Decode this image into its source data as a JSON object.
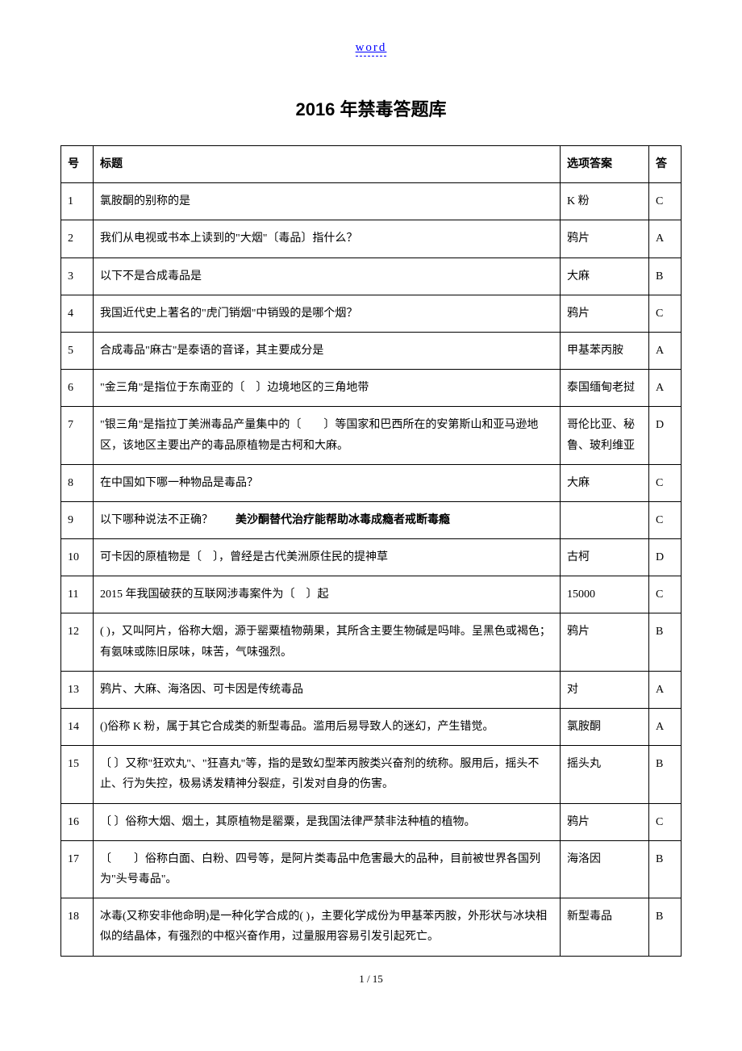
{
  "header": {
    "link_text": "word"
  },
  "page_title": "2016 年禁毒答题库",
  "table": {
    "headers": {
      "num": "号",
      "title": "标题",
      "answer": "选项答案",
      "key": "答"
    },
    "rows": [
      {
        "num": "1",
        "title": "氯胺酮的别称的是",
        "answer": "K 粉",
        "key": "C"
      },
      {
        "num": "2",
        "title": "我们从电视或书本上读到的\"大烟\"〔毒品〕指什么？",
        "answer": "鸦片",
        "key": "A"
      },
      {
        "num": "3",
        "title": "以下不是合成毒品是",
        "answer": "大麻",
        "key": "B"
      },
      {
        "num": "4",
        "title": "我国近代史上著名的\"虎门销烟\"中销毁的是哪个烟？",
        "answer": "鸦片",
        "key": "C"
      },
      {
        "num": "5",
        "title": "合成毒品\"麻古\"是泰语的音译，其主要成分是",
        "answer": "甲基苯丙胺",
        "key": "A"
      },
      {
        "num": "6",
        "title": "\"金三角\"是指位于东南亚的〔　〕边境地区的三角地带",
        "answer": "泰国缅甸老挝",
        "key": "A"
      },
      {
        "num": "7",
        "title": "\"银三角\"是指拉丁美洲毒品产量集中的〔　　〕等国家和巴西所在的安第斯山和亚马逊地区，该地区主要出产的毒品原植物是古柯和大麻。",
        "answer": "哥伦比亚、秘鲁、玻利维亚",
        "key": "D"
      },
      {
        "num": "8",
        "title": "在中国如下哪一种物品是毒品？",
        "answer": "大麻",
        "key": "C"
      },
      {
        "num": "9",
        "title_prefix": "以下哪种说法不正确？　　",
        "title_bold": "美沙酮替代治疗能帮助冰毒成瘾者戒断毒瘾",
        "answer": "",
        "key": "C"
      },
      {
        "num": "10",
        "title": "可卡因的原植物是〔　〕，曾经是古代美洲原住民的提神草",
        "answer": "古柯",
        "key": "D"
      },
      {
        "num": "11",
        "title": "2015 年我国破获的互联网涉毒案件为〔　〕起",
        "answer": "15000",
        "key": "C"
      },
      {
        "num": "12",
        "title": "( )，又叫阿片，俗称大烟，源于罂粟植物蒴果，其所含主要生物碱是吗啡。呈黑色或褐色；有氨味或陈旧尿味，味苦，气味强烈。",
        "answer": "鸦片",
        "key": "B"
      },
      {
        "num": "13",
        "title": "鸦片、大麻、海洛因、可卡因是传统毒品",
        "answer": "对",
        "key": "A"
      },
      {
        "num": "14",
        "title": "()俗称 K 粉，属于其它合成类的新型毒品。滥用后易导致人的迷幻，产生错觉。",
        "answer": "氯胺酮",
        "key": "A"
      },
      {
        "num": "15",
        "title": "〔 〕又称\"狂欢丸\"、\"狂喜丸\"等，指的是致幻型苯丙胺类兴奋剂的统称。服用后，摇头不止、行为失控，极易诱发精神分裂症，引发对自身的伤害。",
        "answer": "摇头丸",
        "key": "B"
      },
      {
        "num": "16",
        "title": "〔 〕俗称大烟、烟土，其原植物是罂粟，是我国法律严禁非法种植的植物。",
        "answer": "鸦片",
        "key": "C"
      },
      {
        "num": "17",
        "title": "〔　　〕俗称白面、白粉、四号等，是阿片类毒品中危害最大的品种，目前被世界各国列为\"头号毒品\"。",
        "answer": "海洛因",
        "key": "B"
      },
      {
        "num": "18",
        "title": "冰毒(又称安非他命明)是一种化学合成的( )，主要化学成份为甲基苯丙胺，外形状与冰块相似的结晶体，有强烈的中枢兴奋作用，过量服用容易引发引起死亡。",
        "answer": "新型毒品",
        "key": "B"
      }
    ]
  },
  "footer": {
    "page_info": "1 / 15"
  }
}
